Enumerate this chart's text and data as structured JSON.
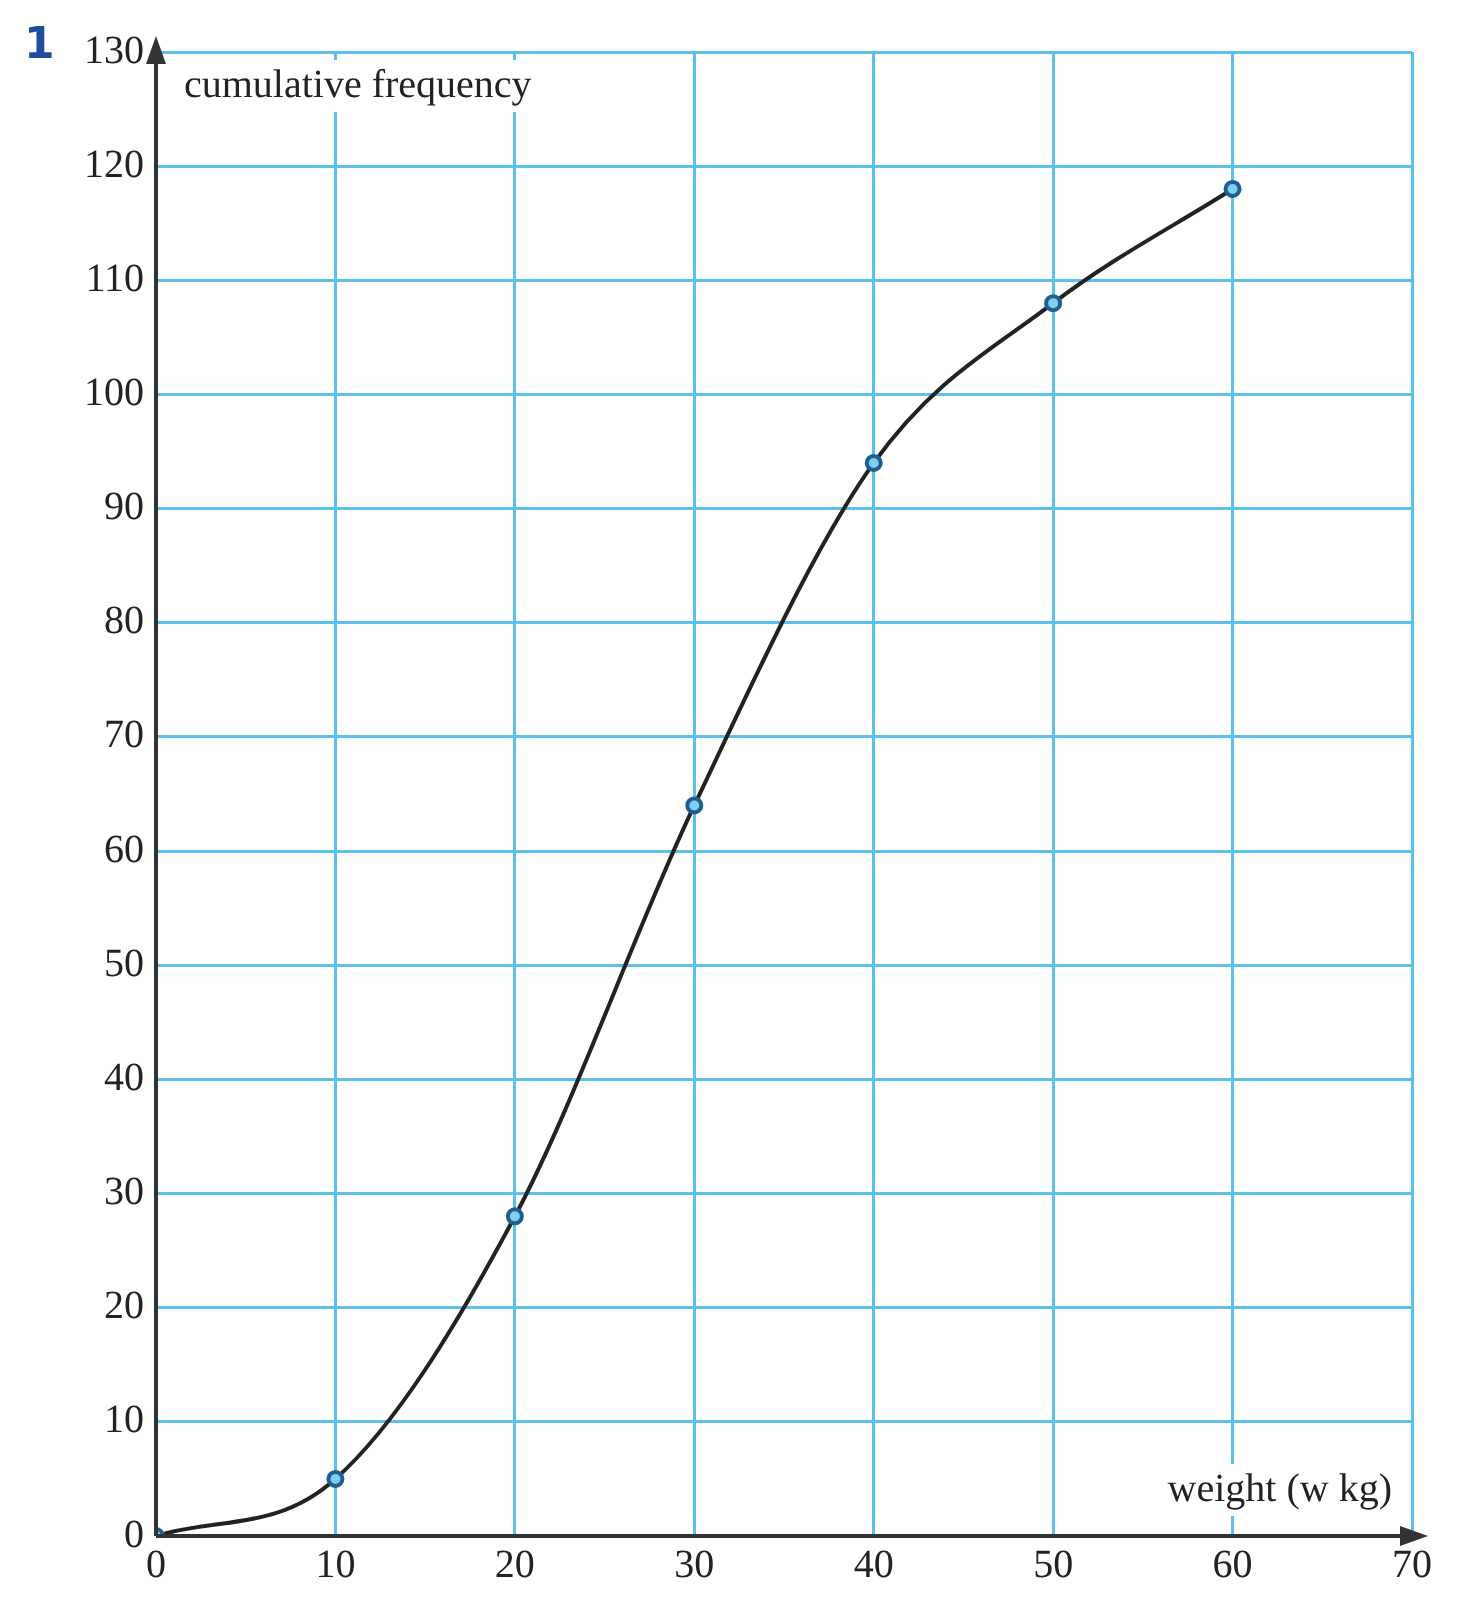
{
  "chart_data": {
    "type": "line",
    "xlabel": "weight (w kg)",
    "ylabel": "cumulative frequency",
    "annotations": [
      "1"
    ],
    "x": [
      0,
      10,
      20,
      30,
      40,
      50,
      60
    ],
    "series": [
      {
        "color": "#222222",
        "values": [
          0,
          5,
          28,
          64,
          94,
          108,
          118
        ]
      }
    ],
    "xlim": [
      0,
      70
    ],
    "xticks": [
      0,
      10,
      20,
      30,
      40,
      50,
      60,
      70
    ],
    "ylim": [
      0,
      130
    ],
    "yticks": [
      0,
      10,
      20,
      30,
      40,
      50,
      60,
      70,
      80,
      90,
      100,
      110,
      120,
      130
    ],
    "grid": true,
    "marker": "circle",
    "line_style": "solid"
  }
}
